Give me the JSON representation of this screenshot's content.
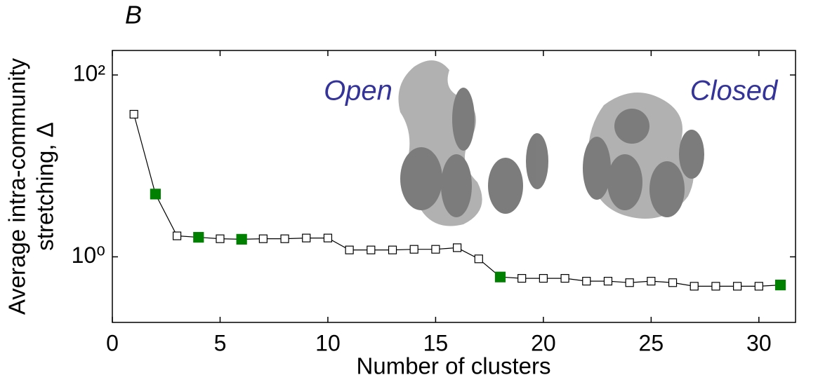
{
  "chart_data": {
    "type": "line",
    "panel_label": "B",
    "annotations": [
      "Open",
      "Closed"
    ],
    "xlabel": "Number of clusters",
    "ylabel": [
      "Average intra-community",
      "stretching,  Δ"
    ],
    "x": [
      1,
      2,
      3,
      4,
      5,
      6,
      7,
      8,
      9,
      10,
      11,
      12,
      13,
      14,
      15,
      16,
      17,
      18,
      19,
      20,
      21,
      22,
      23,
      24,
      25,
      26,
      27,
      28,
      29,
      30,
      31
    ],
    "values": [
      37,
      4.9,
      1.7,
      1.64,
      1.58,
      1.56,
      1.58,
      1.58,
      1.61,
      1.61,
      1.19,
      1.19,
      1.19,
      1.21,
      1.21,
      1.26,
      0.95,
      0.6,
      0.58,
      0.58,
      0.58,
      0.54,
      0.54,
      0.52,
      0.54,
      0.52,
      0.475,
      0.475,
      0.475,
      0.475,
      0.49
    ],
    "filled": [
      false,
      true,
      false,
      true,
      false,
      true,
      false,
      false,
      false,
      false,
      false,
      false,
      false,
      false,
      false,
      false,
      false,
      true,
      false,
      false,
      false,
      false,
      false,
      false,
      false,
      false,
      false,
      false,
      false,
      false,
      true
    ],
    "color": "#000000",
    "fill_color": "#008000",
    "xlim": [
      0,
      31.7
    ],
    "xticks": [
      0,
      5,
      10,
      15,
      20,
      25,
      30
    ],
    "ylim": [
      0.19,
      186
    ],
    "yticks": [
      {
        "value": 1,
        "label": "10⁰"
      },
      {
        "value": 100,
        "label": "10²"
      }
    ],
    "ylog": true
  }
}
